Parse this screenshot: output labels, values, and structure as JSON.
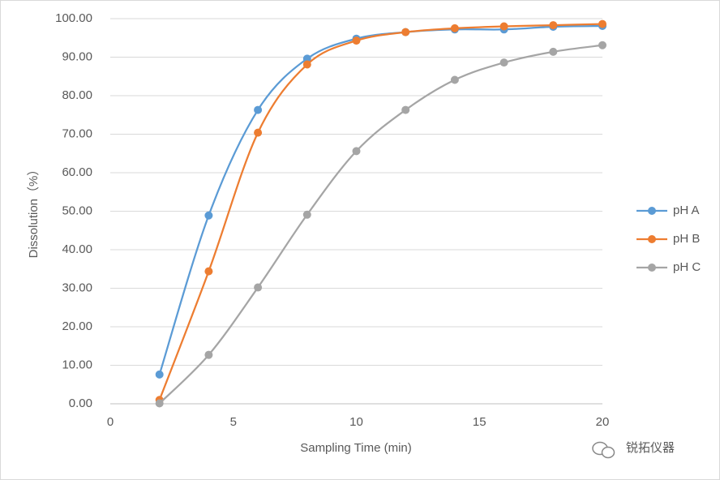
{
  "chart_data": {
    "type": "line",
    "smooth": true,
    "grid": true,
    "legend": "right",
    "xlabel": "Sampling Time (min)",
    "ylabel": "Dissolution（%）",
    "watermark": "锐拓仪器",
    "x": [
      2,
      4,
      6,
      8,
      10,
      12,
      14,
      16,
      18,
      20
    ],
    "series": [
      {
        "name": "pH A",
        "color": "#5b9bd5",
        "values": [
          7.6,
          48.9,
          76.3,
          89.6,
          94.8,
          96.5,
          97.2,
          97.2,
          97.9,
          98.1
        ]
      },
      {
        "name": "pH B",
        "color": "#ed7d31",
        "values": [
          1.0,
          34.4,
          70.4,
          88.1,
          94.3,
          96.5,
          97.5,
          98.0,
          98.3,
          98.6
        ]
      },
      {
        "name": "pH C",
        "color": "#a5a5a5",
        "values": [
          0.1,
          12.7,
          30.2,
          49.1,
          65.6,
          76.3,
          84.1,
          88.6,
          91.4,
          93.1
        ]
      }
    ],
    "xlim": [
      0,
      20
    ],
    "xticks": [
      0,
      5,
      10,
      15,
      20
    ],
    "ylim": [
      0,
      100
    ],
    "yticks": [
      {
        "value": 0,
        "label": "0.00"
      },
      {
        "value": 10,
        "label": "10.00"
      },
      {
        "value": 20,
        "label": "20.00"
      },
      {
        "value": 30,
        "label": "30.00"
      },
      {
        "value": 40,
        "label": "40.00"
      },
      {
        "value": 50,
        "label": "50.00"
      },
      {
        "value": 60,
        "label": "60.00"
      },
      {
        "value": 70,
        "label": "70.00"
      },
      {
        "value": 80,
        "label": "80.00"
      },
      {
        "value": 90,
        "label": "90.00"
      },
      {
        "value": 100,
        "label": "100.00"
      }
    ]
  }
}
